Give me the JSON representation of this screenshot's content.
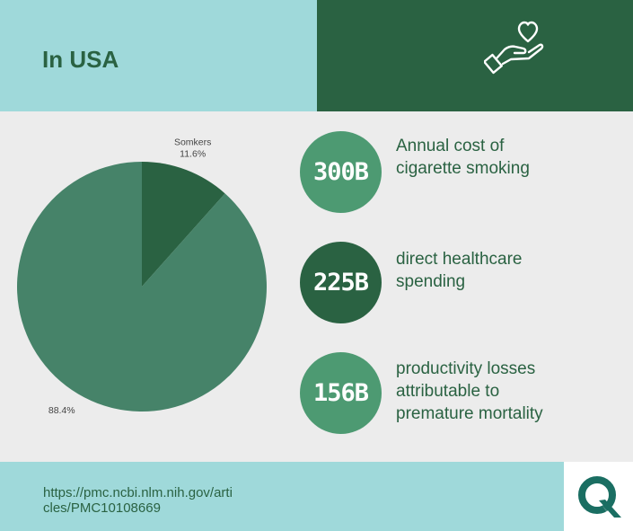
{
  "header": {
    "title": "In USA",
    "icon": "hand-holding-heart-icon"
  },
  "colors": {
    "teal_light": "#9fd9da",
    "green_dark": "#2a6242",
    "green_mid": "#468369",
    "green_circle": "#4d9a72",
    "background": "#ececec"
  },
  "chart_data": {
    "type": "pie",
    "slices": [
      {
        "label": "Somkers",
        "value": 11.6,
        "display": "11.6%",
        "color": "#2a6242"
      },
      {
        "label": "",
        "value": 88.4,
        "display": "88.4%",
        "color": "#468369"
      }
    ],
    "legend": "none"
  },
  "stats": [
    {
      "value": "300B",
      "description": "Annual cost of\ncigarette smoking",
      "color": "#4d9a72"
    },
    {
      "value": "225B",
      "description": "direct healthcare\nspending",
      "color": "#2a6242"
    },
    {
      "value": "156B",
      "description": "productivity losses\nattributable to\npremature mortality",
      "color": "#4d9a72"
    }
  ],
  "footer": {
    "source_line1": "https://pmc.ncbi.nlm.nih.gov/arti",
    "source_line2": "cles/PMC10108669",
    "logo": "q-logo-icon"
  }
}
